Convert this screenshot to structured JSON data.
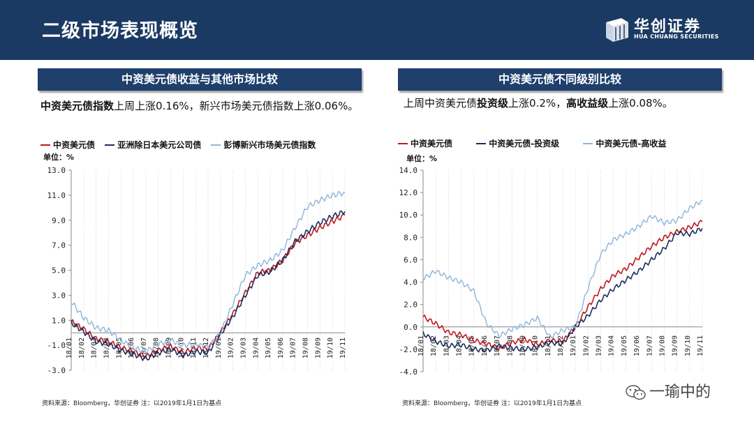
{
  "header": {
    "title": "二级市场表现概览"
  },
  "logo": {
    "cn": "华创证券",
    "en": "HUA CHUANG SECURITIES"
  },
  "left_panel": {
    "title": "中资美元债收益与其他市场比较",
    "desc_bold": "中资美元债指数",
    "desc_rest": "上周上涨0.16%，新兴市场美元债指数上涨0.06%。",
    "unit": "单位：%",
    "source": "资料来源：Bloomberg，华创证券   注：以2019年1月1日为基点"
  },
  "right_panel": {
    "title": "中资美元债不同级别比较",
    "desc_pre": "上周中资美元债",
    "desc_bold1": "投资级",
    "desc_mid": "上涨0.2%，",
    "desc_bold2": "高收益级",
    "desc_post": "上涨0.08%。",
    "unit": "单位：%",
    "source": "资料来源：Bloomberg，华创证券   注：以2019年1月1日为基点"
  },
  "watermark": {
    "text": "一瑜中的"
  },
  "colors": {
    "red": "#c0161d",
    "navy": "#1a2e5c",
    "light": "#8fb4d8"
  },
  "chart_data": [
    {
      "type": "line",
      "title": "中资美元债收益与其他市场比较",
      "ylabel": "单位：%",
      "ylim": [
        -3.0,
        13.0
      ],
      "yticks": [
        "13.0",
        "11.0",
        "9.0",
        "7.0",
        "5.0",
        "3.0",
        "1.0",
        "-1.0",
        "-3.0"
      ],
      "categories": [
        "18/01",
        "18/02",
        "18/03",
        "18/04",
        "18/05",
        "18/06",
        "18/07",
        "18/08",
        "18/09",
        "18/10",
        "18/11",
        "18/12",
        "19/01",
        "19/02",
        "19/03",
        "19/04",
        "19/05",
        "19/06",
        "19/07",
        "19/08",
        "19/09",
        "19/10",
        "19/11"
      ],
      "series": [
        {
          "name": "中资美元债",
          "color": "#c0161d",
          "values": [
            0.9,
            0.3,
            -0.5,
            -0.7,
            -1.2,
            -1.5,
            -1.9,
            -1.4,
            -1.1,
            -1.6,
            -1.2,
            -1.3,
            0.0,
            1.5,
            3.2,
            4.8,
            5.0,
            5.8,
            7.2,
            7.8,
            8.4,
            8.9,
            9.4
          ]
        },
        {
          "name": "亚洲除日本美元公司债",
          "color": "#1a2e5c",
          "values": [
            0.8,
            0.1,
            -0.7,
            -0.9,
            -1.4,
            -1.7,
            -2.1,
            -1.6,
            -1.3,
            -1.8,
            -1.5,
            -1.6,
            -0.1,
            1.3,
            3.0,
            4.6,
            4.9,
            5.8,
            7.3,
            8.1,
            8.8,
            9.3,
            9.7
          ]
        },
        {
          "name": "彭博新兴市场美元债指数",
          "color": "#8fb4d8",
          "values": [
            2.5,
            1.2,
            0.4,
            0.2,
            -0.6,
            -1.2,
            -1.5,
            -0.9,
            -0.6,
            -1.0,
            -0.9,
            -1.2,
            0.0,
            2.3,
            4.6,
            5.4,
            5.8,
            6.6,
            8.4,
            10.1,
            10.6,
            11.0,
            11.2
          ]
        }
      ]
    },
    {
      "type": "line",
      "title": "中资美元债不同级别比较",
      "ylabel": "单位：%",
      "ylim": [
        -4.0,
        14.0
      ],
      "yticks": [
        "14.0",
        "12.0",
        "10.0",
        "8.0",
        "6.0",
        "4.0",
        "2.0",
        "0.0",
        "-2.0",
        "-4.0"
      ],
      "categories": [
        "18/01",
        "18/02",
        "18/03",
        "18/04",
        "18/05",
        "18/06",
        "18/07",
        "18/08",
        "18/09",
        "18/10",
        "18/11",
        "18/12",
        "19/01",
        "19/02",
        "19/03",
        "19/04",
        "19/05",
        "19/06",
        "19/07",
        "19/08",
        "19/09",
        "19/10",
        "19/11"
      ],
      "series": [
        {
          "name": "中资美元债",
          "color": "#c0161d",
          "values": [
            0.9,
            0.3,
            -0.5,
            -0.7,
            -1.2,
            -1.5,
            -1.9,
            -1.4,
            -1.1,
            -1.6,
            -1.2,
            -1.3,
            0.0,
            1.8,
            3.4,
            4.6,
            5.2,
            6.2,
            7.2,
            8.0,
            8.5,
            8.9,
            9.4
          ]
        },
        {
          "name": "中资美元债-投资级",
          "color": "#1a2e5c",
          "values": [
            -0.6,
            -1.3,
            -1.7,
            -1.6,
            -2.0,
            -2.1,
            -1.7,
            -1.9,
            -2.0,
            -1.8,
            -1.4,
            -1.5,
            0.0,
            1.0,
            2.4,
            3.4,
            4.2,
            5.0,
            6.0,
            7.0,
            8.4,
            8.3,
            8.8
          ]
        },
        {
          "name": "中资美元债-高收益",
          "color": "#8fb4d8",
          "values": [
            4.3,
            5.0,
            4.4,
            4.0,
            3.2,
            0.3,
            -0.8,
            -0.2,
            0.2,
            0.8,
            -0.9,
            -0.3,
            0.0,
            3.5,
            6.5,
            7.8,
            8.3,
            9.0,
            9.9,
            9.3,
            9.5,
            10.6,
            11.3
          ]
        }
      ]
    }
  ]
}
